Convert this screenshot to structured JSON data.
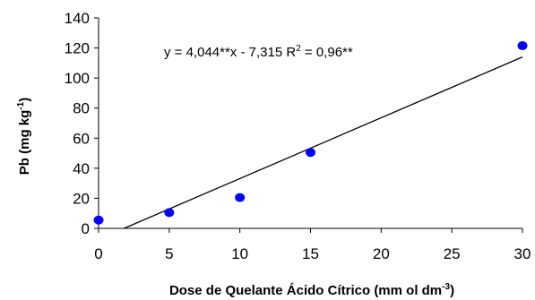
{
  "chart_data": {
    "type": "scatter",
    "x": [
      0,
      5,
      10,
      15,
      30
    ],
    "y": [
      5.5,
      10.5,
      20.5,
      50.5,
      121.5
    ],
    "xlim": [
      0,
      30
    ],
    "ylim": [
      0,
      140
    ],
    "xticks": [
      "0",
      "5",
      "10",
      "15",
      "20",
      "25",
      "30"
    ],
    "yticks": [
      "0",
      "20",
      "40",
      "60",
      "80",
      "100",
      "120",
      "140"
    ],
    "xlabel": {
      "main": "Dose de Quelante Ácido Cítrico (mm ol dm",
      "sup": "-3",
      "end": ")"
    },
    "ylabel": {
      "main": "Pb (mg kg",
      "sup": "-1",
      "end": ")"
    },
    "equation": {
      "text": "y = 4,044**x - 7,315  R",
      "sup": "2",
      "end": " = 0,96**"
    },
    "regression": {
      "slope": 4.044,
      "intercept": -7.315
    },
    "grid": false,
    "point_color": "#0000ff",
    "line_color": "#000000"
  }
}
